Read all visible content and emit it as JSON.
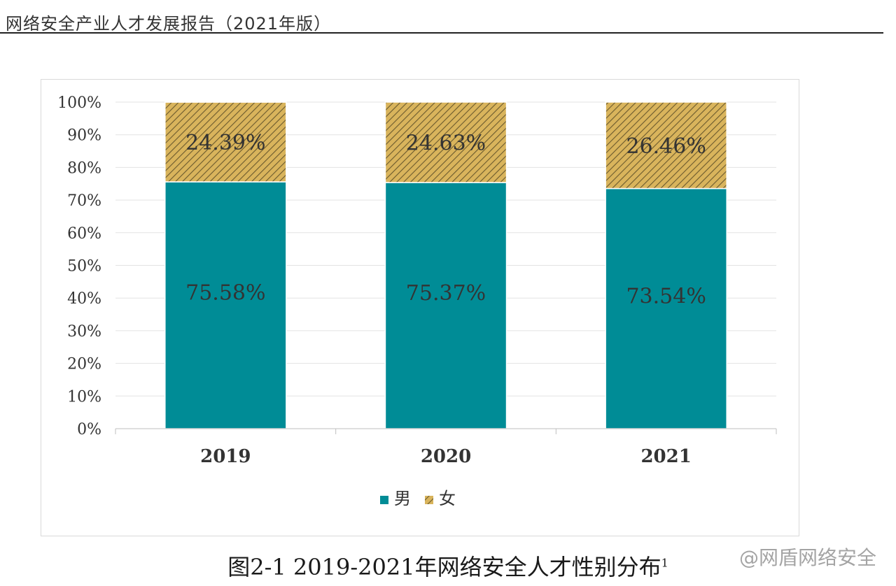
{
  "document": {
    "header": "网络安全产业人才发展报告（2021年版）",
    "caption_prefix": "图2-1 2019-2021年网络安全人才性别分布",
    "caption_footnote": "1",
    "watermark": "@网盾网络安全"
  },
  "chart_data": {
    "type": "bar",
    "stacked": true,
    "categories": [
      "2019",
      "2020",
      "2021"
    ],
    "series": [
      {
        "name": "男",
        "values": [
          75.58,
          75.37,
          73.54
        ],
        "labels": [
          "75.58%",
          "75.37%",
          "73.54%"
        ],
        "color": "#008c96",
        "pattern": "solid"
      },
      {
        "name": "女",
        "values": [
          24.39,
          24.63,
          26.46
        ],
        "labels": [
          "24.39%",
          "24.63%",
          "26.46%"
        ],
        "color": "#d9b45c",
        "pattern": "hatched"
      }
    ],
    "ylim": [
      0,
      100
    ],
    "yticks": [
      0,
      10,
      20,
      30,
      40,
      50,
      60,
      70,
      80,
      90,
      100
    ],
    "ytick_labels": [
      "0%",
      "10%",
      "20%",
      "30%",
      "40%",
      "50%",
      "60%",
      "70%",
      "80%",
      "90%",
      "100%"
    ],
    "grid": true,
    "legend_position": "bottom",
    "xlabel": "",
    "ylabel": ""
  }
}
